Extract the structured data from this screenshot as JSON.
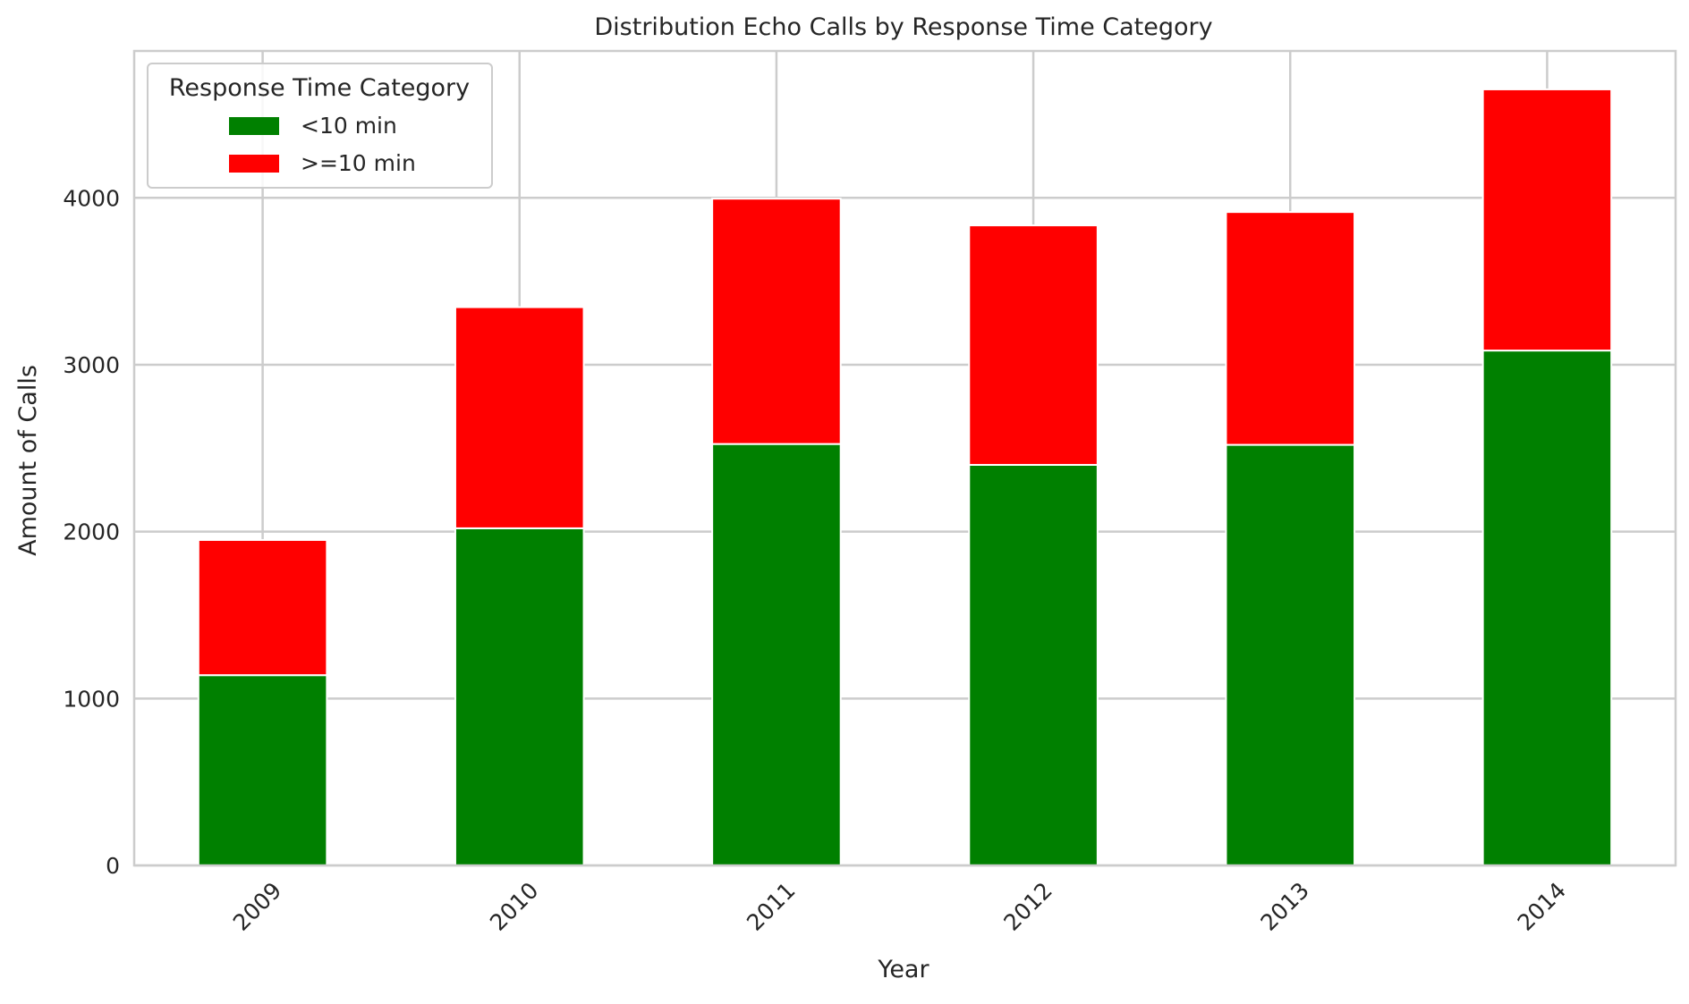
{
  "chart_data": {
    "type": "bar",
    "stacked": true,
    "title": "Distribution Echo Calls by Response Time Category",
    "xlabel": "Year",
    "ylabel": "Amount of Calls",
    "categories": [
      "2009",
      "2010",
      "2011",
      "2012",
      "2013",
      "2014"
    ],
    "series": [
      {
        "name": "<10 min",
        "color": "#008000",
        "values": [
          1140,
          2020,
          2525,
          2400,
          2520,
          3085
        ]
      },
      {
        "name": ">=10 min",
        "color": "#ff0000",
        "values": [
          810,
          1325,
          1470,
          1435,
          1395,
          1565
        ]
      }
    ],
    "ylim": [
      0,
      4880
    ],
    "yticks": [
      0,
      1000,
      2000,
      3000,
      4000
    ],
    "grid": true,
    "legend": {
      "title": "Response Time Category",
      "position": "top-left"
    }
  }
}
